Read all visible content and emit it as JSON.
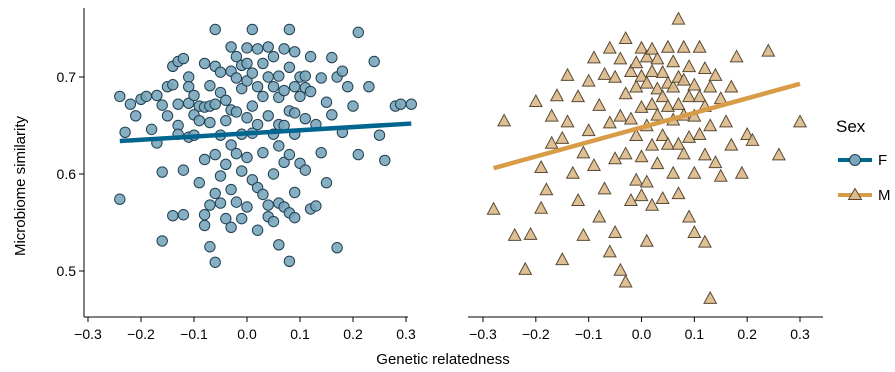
{
  "chart_data": {
    "type": "scatter",
    "xlabel": "Genetic relatedness",
    "ylabel": "Microbiome similarity",
    "xticks": [
      "−0.3",
      "−0.2",
      "−0.1",
      "0.0",
      "0.1",
      "0.2",
      "0.3"
    ],
    "xtick_values": [
      -0.3,
      -0.2,
      -0.1,
      0.0,
      0.1,
      0.2,
      0.3
    ],
    "yticks": [
      "0.5",
      "0.6",
      "0.7"
    ],
    "ytick_values": [
      0.5,
      0.6,
      0.7
    ],
    "xlim": [
      -0.32,
      0.32
    ],
    "ylim": [
      0.46,
      0.77
    ],
    "legend": {
      "title": "Sex",
      "position": "right",
      "entries": [
        "F",
        "M"
      ]
    },
    "panels": [
      {
        "series": "F",
        "marker": "circle",
        "point_color": "#7aa6bd",
        "line_color": "#006690",
        "fit_line": {
          "x": [
            -0.24,
            0.31
          ],
          "y": [
            0.634,
            0.652
          ]
        },
        "points": [
          [
            -0.24,
            0.574
          ],
          [
            -0.24,
            0.68
          ],
          [
            -0.23,
            0.643
          ],
          [
            -0.22,
            0.672
          ],
          [
            -0.21,
            0.66
          ],
          [
            -0.2,
            0.677
          ],
          [
            -0.19,
            0.68
          ],
          [
            -0.18,
            0.646
          ],
          [
            -0.17,
            0.681
          ],
          [
            -0.17,
            0.632
          ],
          [
            -0.16,
            0.671
          ],
          [
            -0.16,
            0.531
          ],
          [
            -0.16,
            0.602
          ],
          [
            -0.15,
            0.69
          ],
          [
            -0.15,
            0.66
          ],
          [
            -0.14,
            0.711
          ],
          [
            -0.14,
            0.692
          ],
          [
            -0.14,
            0.557
          ],
          [
            -0.13,
            0.716
          ],
          [
            -0.13,
            0.672
          ],
          [
            -0.13,
            0.65
          ],
          [
            -0.13,
            0.641
          ],
          [
            -0.12,
            0.719
          ],
          [
            -0.12,
            0.604
          ],
          [
            -0.12,
            0.558
          ],
          [
            -0.11,
            0.7
          ],
          [
            -0.11,
            0.69
          ],
          [
            -0.11,
            0.673
          ],
          [
            -0.11,
            0.638
          ],
          [
            -0.1,
            0.681
          ],
          [
            -0.1,
            0.661
          ],
          [
            -0.1,
            0.64
          ],
          [
            -0.09,
            0.67
          ],
          [
            -0.09,
            0.655
          ],
          [
            -0.09,
            0.591
          ],
          [
            -0.08,
            0.714
          ],
          [
            -0.08,
            0.669
          ],
          [
            -0.08,
            0.615
          ],
          [
            -0.08,
            0.558
          ],
          [
            -0.08,
            0.547
          ],
          [
            -0.07,
            0.691
          ],
          [
            -0.07,
            0.67
          ],
          [
            -0.07,
            0.653
          ],
          [
            -0.07,
            0.568
          ],
          [
            -0.07,
            0.525
          ],
          [
            -0.06,
            0.749
          ],
          [
            -0.06,
            0.711
          ],
          [
            -0.06,
            0.672
          ],
          [
            -0.06,
            0.62
          ],
          [
            -0.06,
            0.58
          ],
          [
            -0.06,
            0.509
          ],
          [
            -0.05,
            0.705
          ],
          [
            -0.05,
            0.684
          ],
          [
            -0.05,
            0.64
          ],
          [
            -0.05,
            0.598
          ],
          [
            -0.05,
            0.57
          ],
          [
            -0.04,
            0.676
          ],
          [
            -0.04,
            0.655
          ],
          [
            -0.04,
            0.61
          ],
          [
            -0.04,
            0.554
          ],
          [
            -0.03,
            0.731
          ],
          [
            -0.03,
            0.706
          ],
          [
            -0.03,
            0.666
          ],
          [
            -0.03,
            0.63
          ],
          [
            -0.03,
            0.584
          ],
          [
            -0.03,
            0.545
          ],
          [
            -0.02,
            0.721
          ],
          [
            -0.02,
            0.699
          ],
          [
            -0.02,
            0.664
          ],
          [
            -0.02,
            0.621
          ],
          [
            -0.02,
            0.571
          ],
          [
            -0.01,
            0.712
          ],
          [
            -0.01,
            0.688
          ],
          [
            -0.01,
            0.641
          ],
          [
            -0.01,
            0.603
          ],
          [
            -0.01,
            0.554
          ],
          [
            0.0,
            0.73
          ],
          [
            0.0,
            0.714
          ],
          [
            0.0,
            0.696
          ],
          [
            0.0,
            0.658
          ],
          [
            0.0,
            0.617
          ],
          [
            0.0,
            0.566
          ],
          [
            0.01,
            0.749
          ],
          [
            0.01,
            0.704
          ],
          [
            0.01,
            0.67
          ],
          [
            0.01,
            0.642
          ],
          [
            0.01,
            0.594
          ],
          [
            0.02,
            0.729
          ],
          [
            0.02,
            0.69
          ],
          [
            0.02,
            0.651
          ],
          [
            0.02,
            0.586
          ],
          [
            0.02,
            0.542
          ],
          [
            0.03,
            0.714
          ],
          [
            0.03,
            0.68
          ],
          [
            0.03,
            0.622
          ],
          [
            0.03,
            0.579
          ],
          [
            0.04,
            0.731
          ],
          [
            0.04,
            0.7
          ],
          [
            0.04,
            0.66
          ],
          [
            0.04,
            0.568
          ],
          [
            0.04,
            0.556
          ],
          [
            0.05,
            0.721
          ],
          [
            0.05,
            0.69
          ],
          [
            0.05,
            0.641
          ],
          [
            0.05,
            0.6
          ],
          [
            0.05,
            0.551
          ],
          [
            0.06,
            0.701
          ],
          [
            0.06,
            0.679
          ],
          [
            0.06,
            0.651
          ],
          [
            0.06,
            0.629
          ],
          [
            0.06,
            0.57
          ],
          [
            0.06,
            0.527
          ],
          [
            0.07,
            0.729
          ],
          [
            0.07,
            0.686
          ],
          [
            0.07,
            0.65
          ],
          [
            0.07,
            0.612
          ],
          [
            0.07,
            0.566
          ],
          [
            0.08,
            0.749
          ],
          [
            0.08,
            0.71
          ],
          [
            0.08,
            0.665
          ],
          [
            0.08,
            0.62
          ],
          [
            0.08,
            0.56
          ],
          [
            0.08,
            0.51
          ],
          [
            0.09,
            0.726
          ],
          [
            0.09,
            0.69
          ],
          [
            0.09,
            0.663
          ],
          [
            0.09,
            0.641
          ],
          [
            0.09,
            0.581
          ],
          [
            0.09,
            0.555
          ],
          [
            0.1,
            0.7
          ],
          [
            0.1,
            0.68
          ],
          [
            0.1,
            0.611
          ],
          [
            0.11,
            0.701
          ],
          [
            0.11,
            0.689
          ],
          [
            0.11,
            0.657
          ],
          [
            0.11,
            0.604
          ],
          [
            0.12,
            0.721
          ],
          [
            0.12,
            0.685
          ],
          [
            0.12,
            0.564
          ],
          [
            0.13,
            0.651
          ],
          [
            0.13,
            0.567
          ],
          [
            0.14,
            0.699
          ],
          [
            0.14,
            0.622
          ],
          [
            0.15,
            0.674
          ],
          [
            0.15,
            0.591
          ],
          [
            0.16,
            0.72
          ],
          [
            0.16,
            0.661
          ],
          [
            0.17,
            0.7
          ],
          [
            0.17,
            0.524
          ],
          [
            0.18,
            0.706
          ],
          [
            0.18,
            0.643
          ],
          [
            0.19,
            0.69
          ],
          [
            0.2,
            0.67
          ],
          [
            0.21,
            0.746
          ],
          [
            0.21,
            0.62
          ],
          [
            0.23,
            0.69
          ],
          [
            0.24,
            0.716
          ],
          [
            0.25,
            0.64
          ],
          [
            0.26,
            0.614
          ],
          [
            0.28,
            0.67
          ],
          [
            0.29,
            0.672
          ],
          [
            0.31,
            0.672
          ]
        ]
      },
      {
        "series": "M",
        "marker": "triangle",
        "point_color": "#dcb98a",
        "line_color": "#d89c49",
        "fit_line": {
          "x": [
            -0.28,
            0.3
          ],
          "y": [
            0.606,
            0.693
          ]
        },
        "points": [
          [
            -0.28,
            0.564
          ],
          [
            -0.26,
            0.655
          ],
          [
            -0.24,
            0.537
          ],
          [
            -0.22,
            0.502
          ],
          [
            -0.21,
            0.538
          ],
          [
            -0.2,
            0.675
          ],
          [
            -0.19,
            0.565
          ],
          [
            -0.19,
            0.607
          ],
          [
            -0.18,
            0.584
          ],
          [
            -0.17,
            0.632
          ],
          [
            -0.17,
            0.66
          ],
          [
            -0.16,
            0.681
          ],
          [
            -0.15,
            0.637
          ],
          [
            -0.15,
            0.512
          ],
          [
            -0.14,
            0.654
          ],
          [
            -0.14,
            0.702
          ],
          [
            -0.13,
            0.601
          ],
          [
            -0.12,
            0.68
          ],
          [
            -0.12,
            0.573
          ],
          [
            -0.11,
            0.622
          ],
          [
            -0.11,
            0.537
          ],
          [
            -0.1,
            0.645
          ],
          [
            -0.1,
            0.696
          ],
          [
            -0.09,
            0.72
          ],
          [
            -0.09,
            0.609
          ],
          [
            -0.08,
            0.671
          ],
          [
            -0.08,
            0.556
          ],
          [
            -0.07,
            0.703
          ],
          [
            -0.07,
            0.585
          ],
          [
            -0.06,
            0.73
          ],
          [
            -0.06,
            0.653
          ],
          [
            -0.06,
            0.52
          ],
          [
            -0.05,
            0.7
          ],
          [
            -0.05,
            0.616
          ],
          [
            -0.05,
            0.54
          ],
          [
            -0.04,
            0.719
          ],
          [
            -0.04,
            0.66
          ],
          [
            -0.04,
            0.501
          ],
          [
            -0.03,
            0.74
          ],
          [
            -0.03,
            0.683
          ],
          [
            -0.03,
            0.621
          ],
          [
            -0.03,
            0.489
          ],
          [
            -0.02,
            0.706
          ],
          [
            -0.02,
            0.657
          ],
          [
            -0.02,
            0.573
          ],
          [
            -0.01,
            0.715
          ],
          [
            -0.01,
            0.69
          ],
          [
            -0.01,
            0.64
          ],
          [
            -0.01,
            0.594
          ],
          [
            0.0,
            0.73
          ],
          [
            0.0,
            0.701
          ],
          [
            0.0,
            0.669
          ],
          [
            0.0,
            0.618
          ],
          [
            0.0,
            0.578
          ],
          [
            0.01,
            0.721
          ],
          [
            0.01,
            0.694
          ],
          [
            0.01,
            0.65
          ],
          [
            0.01,
            0.592
          ],
          [
            0.01,
            0.531
          ],
          [
            0.02,
            0.729
          ],
          [
            0.02,
            0.706
          ],
          [
            0.02,
            0.672
          ],
          [
            0.02,
            0.63
          ],
          [
            0.02,
            0.568
          ],
          [
            0.03,
            0.719
          ],
          [
            0.03,
            0.688
          ],
          [
            0.03,
            0.661
          ],
          [
            0.03,
            0.611
          ],
          [
            0.04,
            0.705
          ],
          [
            0.04,
            0.68
          ],
          [
            0.04,
            0.64
          ],
          [
            0.04,
            0.575
          ],
          [
            0.05,
            0.731
          ],
          [
            0.05,
            0.694
          ],
          [
            0.05,
            0.67
          ],
          [
            0.05,
            0.631
          ],
          [
            0.06,
            0.716
          ],
          [
            0.06,
            0.69
          ],
          [
            0.06,
            0.656
          ],
          [
            0.06,
            0.601
          ],
          [
            0.07,
            0.76
          ],
          [
            0.07,
            0.7
          ],
          [
            0.07,
            0.672
          ],
          [
            0.07,
            0.631
          ],
          [
            0.07,
            0.58
          ],
          [
            0.08,
            0.731
          ],
          [
            0.08,
            0.697
          ],
          [
            0.08,
            0.661
          ],
          [
            0.08,
            0.621
          ],
          [
            0.09,
            0.711
          ],
          [
            0.09,
            0.68
          ],
          [
            0.09,
            0.638
          ],
          [
            0.09,
            0.556
          ],
          [
            0.1,
            0.692
          ],
          [
            0.1,
            0.66
          ],
          [
            0.1,
            0.601
          ],
          [
            0.1,
            0.54
          ],
          [
            0.11,
            0.731
          ],
          [
            0.11,
            0.68
          ],
          [
            0.11,
            0.641
          ],
          [
            0.12,
            0.709
          ],
          [
            0.12,
            0.67
          ],
          [
            0.12,
            0.62
          ],
          [
            0.12,
            0.53
          ],
          [
            0.13,
            0.69
          ],
          [
            0.13,
            0.65
          ],
          [
            0.13,
            0.472
          ],
          [
            0.14,
            0.702
          ],
          [
            0.14,
            0.612
          ],
          [
            0.15,
            0.678
          ],
          [
            0.15,
            0.598
          ],
          [
            0.16,
            0.654
          ],
          [
            0.17,
            0.69
          ],
          [
            0.17,
            0.63
          ],
          [
            0.18,
            0.721
          ],
          [
            0.19,
            0.601
          ],
          [
            0.2,
            0.641
          ],
          [
            0.21,
            0.635
          ],
          [
            0.24,
            0.727
          ],
          [
            0.26,
            0.62
          ],
          [
            0.3,
            0.654
          ]
        ]
      }
    ]
  }
}
